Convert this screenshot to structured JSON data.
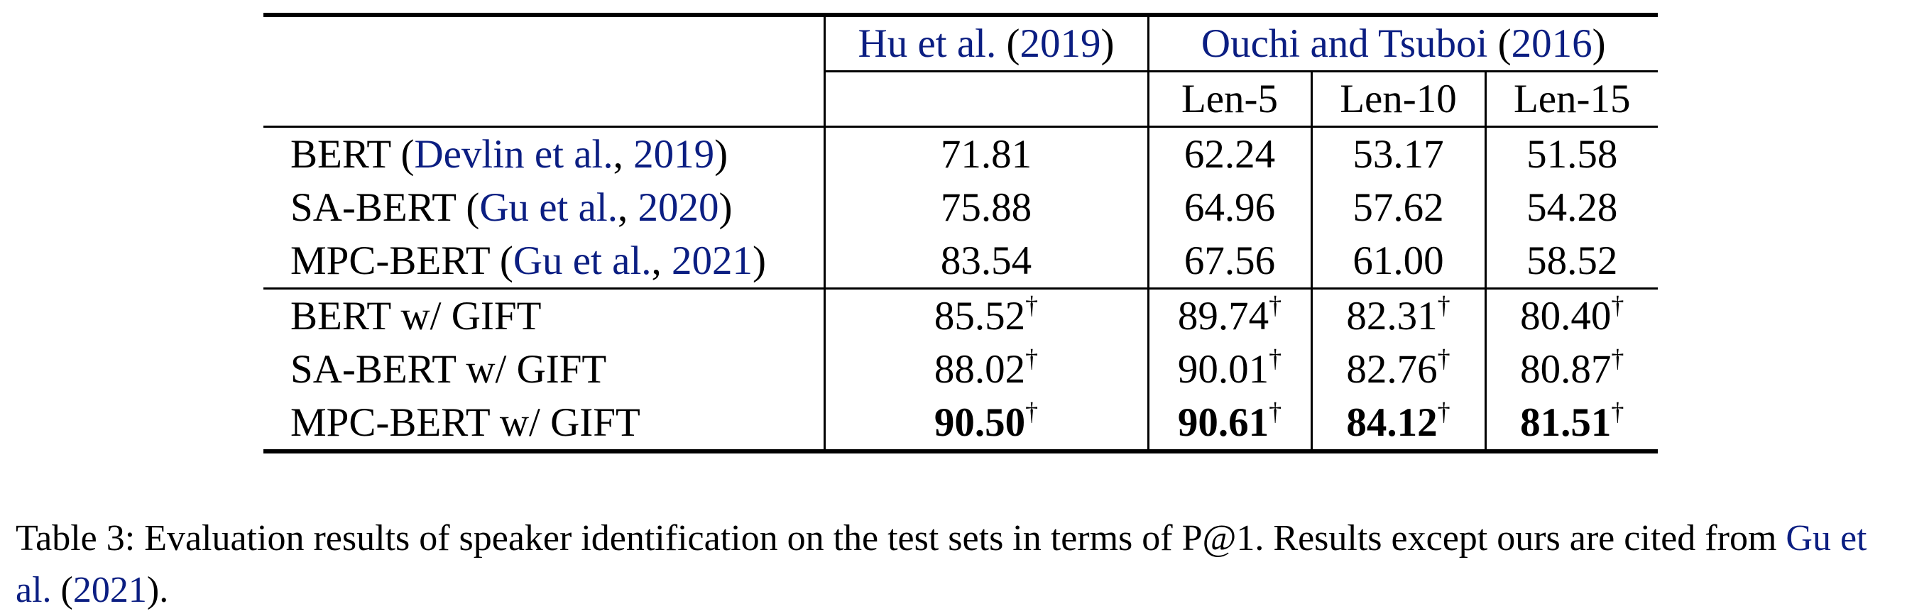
{
  "table": {
    "header": {
      "group1_cite_author": "Hu et al.",
      "group1_cite_year": "2019",
      "group2_cite_author": "Ouchi and Tsuboi",
      "group2_cite_year": "2016",
      "subcols": [
        "Len-5",
        "Len-10",
        "Len-15"
      ]
    },
    "baselines": [
      {
        "model": "BERT",
        "cite_author": "Devlin et al.",
        "cite_year": "2019",
        "values": [
          "71.81",
          "62.24",
          "53.17",
          "51.58"
        ]
      },
      {
        "model": "SA-BERT",
        "cite_author": "Gu et al.",
        "cite_year": "2020",
        "values": [
          "75.88",
          "64.96",
          "57.62",
          "54.28"
        ]
      },
      {
        "model": "MPC-BERT",
        "cite_author": "Gu et al.",
        "cite_year": "2021",
        "values": [
          "83.54",
          "67.56",
          "61.00",
          "58.52"
        ]
      }
    ],
    "ours": [
      {
        "model": "BERT w/ GIFT",
        "values": [
          "85.52",
          "89.74",
          "82.31",
          "80.40"
        ],
        "mark": "†",
        "bold": false
      },
      {
        "model": "SA-BERT w/ GIFT",
        "values": [
          "88.02",
          "90.01",
          "82.76",
          "80.87"
        ],
        "mark": "†",
        "bold": false
      },
      {
        "model": "MPC-BERT w/ GIFT",
        "values": [
          "90.50",
          "90.61",
          "84.12",
          "81.51"
        ],
        "mark": "†",
        "bold": true
      }
    ]
  },
  "caption": {
    "label": "Table 3:",
    "text": "Evaluation results of speaker identification on the test sets in terms of P@1. Results except ours are cited from",
    "cite_author": "Gu et al.",
    "cite_year": "2021",
    "end": "."
  },
  "colors": {
    "citation": "#0b1e82",
    "text": "#000000"
  }
}
